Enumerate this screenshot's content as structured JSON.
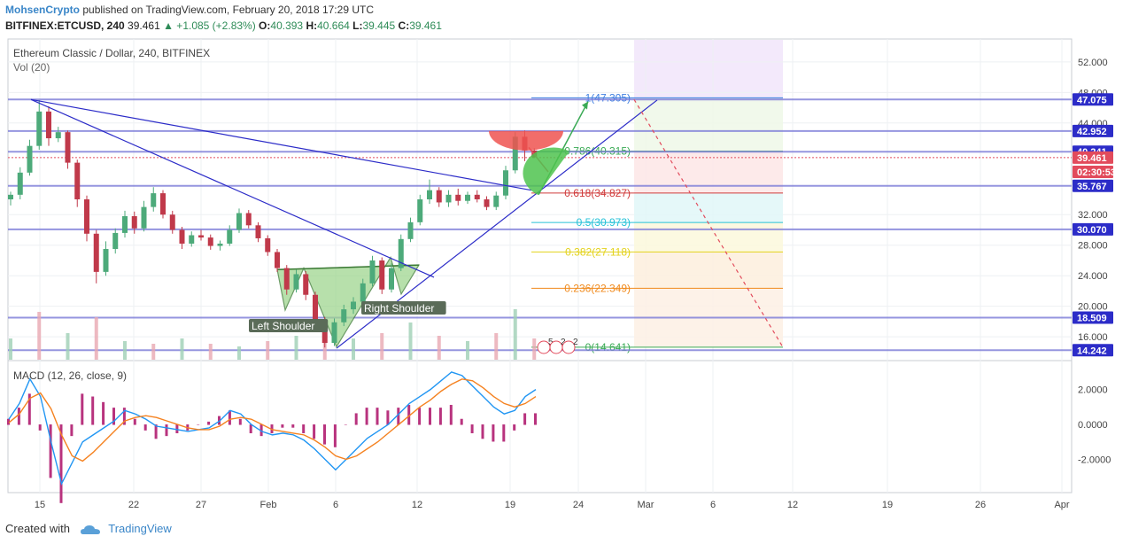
{
  "header": {
    "user": "MohsenCrypto",
    "published": "published on TradingView.com, February 20, 2018 17:29 UTC",
    "symbol": "BITFINEX:ETCUSD, 240",
    "last": "39.461",
    "change": "▲ +1.085 (+2.83%)",
    "ohlc_o_label": "O:",
    "ohlc_o": "40.393",
    "ohlc_h_label": "H:",
    "ohlc_h": "40.664",
    "ohlc_l_label": "L:",
    "ohlc_l": "39.445",
    "ohlc_c_label": "C:",
    "ohlc_c": "39.461"
  },
  "footer": {
    "created_with": "Created with",
    "brand": "TradingView"
  },
  "colors": {
    "up": "#4daa7a",
    "down": "#c0394a",
    "trendline": "#2c2cc8",
    "hline": "#7b7bd8",
    "macd": "#2196f3",
    "signal": "#f58220",
    "hist": "#b8337e"
  },
  "chart_data": [
    {
      "type": "candlestick",
      "title": "Ethereum Classic / Dollar, 240, BITFINEX",
      "indicator_label": "Vol (20)",
      "x_ticks": [
        "15",
        "22",
        "27",
        "Feb",
        "6",
        "12",
        "19",
        "24",
        "Mar",
        "6",
        "12",
        "19",
        "26",
        "Apr"
      ],
      "ylim": [
        13.0,
        55.0
      ],
      "y_ticks": [
        52.0,
        48.0,
        44.0,
        32.0,
        28.0,
        24.0,
        20.0,
        16.0
      ],
      "y_tick_labels": [
        "52.000",
        "48.000",
        "44.000",
        "32.000",
        "28.000",
        "24.000",
        "20.000",
        "16.000"
      ],
      "price_tags": [
        {
          "label": "47.075",
          "value": 47.075,
          "color": "#2c2cc8"
        },
        {
          "label": "42.952",
          "value": 42.952,
          "color": "#2c2cc8"
        },
        {
          "label": "40.241",
          "value": 40.241,
          "color": "#2c2cc8"
        },
        {
          "label": "39.461",
          "value": 39.461,
          "color": "#e24b5c"
        },
        {
          "label": "02:30:53",
          "value": 37.6,
          "color": "#e24b5c"
        },
        {
          "label": "35.767",
          "value": 35.767,
          "color": "#2c2cc8"
        },
        {
          "label": "30.070",
          "value": 30.07,
          "color": "#2c2cc8"
        },
        {
          "label": "18.509",
          "value": 18.509,
          "color": "#2c2cc8"
        },
        {
          "label": "14.242",
          "value": 14.242,
          "color": "#2c2cc8"
        }
      ],
      "horizontal_levels": [
        47.075,
        42.952,
        40.241,
        35.767,
        30.07,
        18.509,
        14.242
      ],
      "fibonacci": [
        {
          "label": "1(47.305)",
          "value": 47.305,
          "color": "#3f7fe0",
          "fill": "#dfe9fb"
        },
        {
          "label": "0.786(40.315)",
          "value": 40.315,
          "color": "#3aaa55",
          "fill": "#eef8e8"
        },
        {
          "label": "0.618(34.827)",
          "value": 34.827,
          "color": "#d03b3b",
          "fill": "#fde6e6"
        },
        {
          "label": "0.5(30.973)",
          "value": 30.973,
          "color": "#27c2d8",
          "fill": "#e0f7f8"
        },
        {
          "label": "0.382(27.118)",
          "value": 27.118,
          "color": "#e3d21b",
          "fill": "#fbf8dc"
        },
        {
          "label": "0.236(22.349)",
          "value": 22.349,
          "color": "#f08a1c",
          "fill": "#fdeedd"
        },
        {
          "label": "0(14.641)",
          "value": 14.641,
          "color": "#3aaa55",
          "fill": "#fdf0e4"
        }
      ],
      "annotations": [
        "Left Shoulder",
        "Right Shoulder"
      ],
      "event_flags": [
        "5",
        "2",
        "2"
      ],
      "candles": [
        {
          "t": 0,
          "o": 34.0,
          "h": 35.0,
          "l": 33.2,
          "c": 34.6
        },
        {
          "t": 1,
          "o": 34.6,
          "h": 38.2,
          "l": 34.0,
          "c": 37.5
        },
        {
          "t": 2,
          "o": 37.5,
          "h": 41.8,
          "l": 37.1,
          "c": 41.0
        },
        {
          "t": 3,
          "o": 41.0,
          "h": 47.0,
          "l": 40.5,
          "c": 45.5
        },
        {
          "t": 4,
          "o": 45.5,
          "h": 46.2,
          "l": 41.0,
          "c": 42.0
        },
        {
          "t": 5,
          "o": 42.0,
          "h": 43.5,
          "l": 41.5,
          "c": 42.8
        },
        {
          "t": 6,
          "o": 42.8,
          "h": 43.0,
          "l": 38.0,
          "c": 38.8
        },
        {
          "t": 7,
          "o": 38.8,
          "h": 39.2,
          "l": 33.0,
          "c": 34.0
        },
        {
          "t": 8,
          "o": 34.0,
          "h": 34.5,
          "l": 28.5,
          "c": 29.5
        },
        {
          "t": 9,
          "o": 29.5,
          "h": 30.0,
          "l": 23.0,
          "c": 24.5
        },
        {
          "t": 10,
          "o": 24.5,
          "h": 28.5,
          "l": 24.0,
          "c": 27.5
        },
        {
          "t": 11,
          "o": 27.5,
          "h": 30.2,
          "l": 26.9,
          "c": 29.6
        },
        {
          "t": 12,
          "o": 29.6,
          "h": 32.5,
          "l": 29.0,
          "c": 31.8
        },
        {
          "t": 13,
          "o": 31.8,
          "h": 32.4,
          "l": 29.5,
          "c": 30.2
        },
        {
          "t": 14,
          "o": 30.2,
          "h": 33.8,
          "l": 29.8,
          "c": 33.0
        },
        {
          "t": 15,
          "o": 33.0,
          "h": 35.6,
          "l": 32.4,
          "c": 34.8
        },
        {
          "t": 16,
          "o": 34.8,
          "h": 35.2,
          "l": 31.5,
          "c": 32.0
        },
        {
          "t": 17,
          "o": 32.0,
          "h": 32.5,
          "l": 29.5,
          "c": 30.0
        },
        {
          "t": 18,
          "o": 30.0,
          "h": 30.4,
          "l": 27.5,
          "c": 28.2
        },
        {
          "t": 19,
          "o": 28.2,
          "h": 29.8,
          "l": 27.8,
          "c": 29.3
        },
        {
          "t": 20,
          "o": 29.3,
          "h": 30.0,
          "l": 28.6,
          "c": 29.0
        },
        {
          "t": 21,
          "o": 29.0,
          "h": 29.4,
          "l": 27.4,
          "c": 27.9
        },
        {
          "t": 22,
          "o": 27.9,
          "h": 28.6,
          "l": 27.3,
          "c": 28.2
        },
        {
          "t": 23,
          "o": 28.2,
          "h": 30.6,
          "l": 27.9,
          "c": 30.0
        },
        {
          "t": 24,
          "o": 30.0,
          "h": 32.8,
          "l": 29.6,
          "c": 32.2
        },
        {
          "t": 25,
          "o": 32.2,
          "h": 32.6,
          "l": 30.2,
          "c": 30.6
        },
        {
          "t": 26,
          "o": 30.6,
          "h": 31.0,
          "l": 28.4,
          "c": 28.9
        },
        {
          "t": 27,
          "o": 28.9,
          "h": 29.3,
          "l": 26.6,
          "c": 27.1
        },
        {
          "t": 28,
          "o": 27.1,
          "h": 27.5,
          "l": 24.5,
          "c": 25.0
        },
        {
          "t": 29,
          "o": 25.0,
          "h": 25.4,
          "l": 21.5,
          "c": 22.2
        },
        {
          "t": 30,
          "o": 22.2,
          "h": 24.8,
          "l": 21.8,
          "c": 24.2
        },
        {
          "t": 31,
          "o": 24.2,
          "h": 24.6,
          "l": 20.8,
          "c": 21.5
        },
        {
          "t": 32,
          "o": 21.5,
          "h": 21.9,
          "l": 17.5,
          "c": 18.2
        },
        {
          "t": 33,
          "o": 18.2,
          "h": 18.6,
          "l": 14.6,
          "c": 15.2
        },
        {
          "t": 34,
          "o": 15.2,
          "h": 18.4,
          "l": 14.8,
          "c": 17.9
        },
        {
          "t": 35,
          "o": 17.9,
          "h": 20.2,
          "l": 17.4,
          "c": 19.6
        },
        {
          "t": 36,
          "o": 19.6,
          "h": 21.2,
          "l": 19.0,
          "c": 20.6
        },
        {
          "t": 37,
          "o": 20.6,
          "h": 23.6,
          "l": 20.2,
          "c": 23.0
        },
        {
          "t": 38,
          "o": 23.0,
          "h": 26.6,
          "l": 22.6,
          "c": 26.0
        },
        {
          "t": 39,
          "o": 26.0,
          "h": 26.4,
          "l": 21.6,
          "c": 22.2
        },
        {
          "t": 40,
          "o": 22.2,
          "h": 25.6,
          "l": 21.8,
          "c": 25.0
        },
        {
          "t": 41,
          "o": 25.0,
          "h": 29.4,
          "l": 24.6,
          "c": 28.8
        },
        {
          "t": 42,
          "o": 28.8,
          "h": 31.6,
          "l": 28.4,
          "c": 31.0
        },
        {
          "t": 43,
          "o": 31.0,
          "h": 34.6,
          "l": 30.6,
          "c": 34.0
        },
        {
          "t": 44,
          "o": 34.0,
          "h": 36.6,
          "l": 33.4,
          "c": 35.2
        },
        {
          "t": 45,
          "o": 35.2,
          "h": 35.6,
          "l": 33.0,
          "c": 33.6
        },
        {
          "t": 46,
          "o": 33.6,
          "h": 35.2,
          "l": 33.0,
          "c": 34.6
        },
        {
          "t": 47,
          "o": 34.6,
          "h": 35.4,
          "l": 33.2,
          "c": 33.8
        },
        {
          "t": 48,
          "o": 33.8,
          "h": 35.0,
          "l": 33.4,
          "c": 34.6
        },
        {
          "t": 49,
          "o": 34.6,
          "h": 35.2,
          "l": 33.6,
          "c": 34.0
        },
        {
          "t": 50,
          "o": 34.0,
          "h": 34.4,
          "l": 32.6,
          "c": 33.0
        },
        {
          "t": 51,
          "o": 33.0,
          "h": 35.0,
          "l": 32.6,
          "c": 34.5
        },
        {
          "t": 52,
          "o": 34.5,
          "h": 38.4,
          "l": 34.0,
          "c": 37.8
        },
        {
          "t": 53,
          "o": 37.8,
          "h": 42.8,
          "l": 37.4,
          "c": 42.2
        },
        {
          "t": 54,
          "o": 42.2,
          "h": 43.0,
          "l": 39.0,
          "c": 40.4
        },
        {
          "t": 55,
          "o": 40.4,
          "h": 40.7,
          "l": 39.4,
          "c": 39.5
        }
      ],
      "volume": [
        {
          "t": 0,
          "v": 0.4
        },
        {
          "t": 3,
          "v": 0.9
        },
        {
          "t": 6,
          "v": 0.5
        },
        {
          "t": 9,
          "v": 0.8
        },
        {
          "t": 12,
          "v": 0.35
        },
        {
          "t": 15,
          "v": 0.3
        },
        {
          "t": 18,
          "v": 0.4
        },
        {
          "t": 21,
          "v": 0.3
        },
        {
          "t": 24,
          "v": 0.25
        },
        {
          "t": 27,
          "v": 0.35
        },
        {
          "t": 30,
          "v": 0.45
        },
        {
          "t": 33,
          "v": 0.55
        },
        {
          "t": 36,
          "v": 0.4
        },
        {
          "t": 39,
          "v": 0.5
        },
        {
          "t": 42,
          "v": 0.7
        },
        {
          "t": 45,
          "v": 0.45
        },
        {
          "t": 48,
          "v": 0.35
        },
        {
          "t": 51,
          "v": 0.5
        },
        {
          "t": 53,
          "v": 0.95
        },
        {
          "t": 55,
          "v": 0.4
        }
      ]
    },
    {
      "type": "line",
      "title": "MACD (12, 26, close, 9)",
      "y_ticks": [
        2.0,
        0.0,
        -2.0
      ],
      "y_tick_labels": [
        "2.0000",
        "0.0000",
        "-2.0000"
      ],
      "ylim": [
        -3.5,
        3.2
      ],
      "series": [
        {
          "name": "",
          "values": [
            0.3,
            1.2,
            2.6,
            1.6,
            -1.0,
            -3.4,
            -2.2,
            -1.0,
            -0.6,
            -0.2,
            0.2,
            0.8,
            0.6,
            0.3,
            -0.1,
            -0.2,
            -0.3,
            -0.4,
            -0.3,
            -0.2,
            0.2,
            0.8,
            0.6,
            0.0,
            -0.4,
            -0.6,
            -0.5,
            -0.6,
            -0.9,
            -1.4,
            -2.0,
            -2.6,
            -2.0,
            -1.4,
            -0.8,
            -0.4,
            0.0,
            0.6,
            1.2,
            1.6,
            2.0,
            2.5,
            3.0,
            2.8,
            2.2,
            1.6,
            1.0,
            0.6,
            0.8,
            1.6,
            2.0
          ]
        },
        {
          "name": "",
          "values": [
            0.1,
            0.6,
            1.5,
            1.8,
            0.9,
            -0.6,
            -1.8,
            -2.1,
            -1.6,
            -1.0,
            -0.4,
            0.2,
            0.4,
            0.5,
            0.4,
            0.2,
            0.0,
            -0.2,
            -0.3,
            -0.3,
            -0.1,
            0.3,
            0.4,
            0.3,
            0.0,
            -0.3,
            -0.4,
            -0.5,
            -0.6,
            -0.9,
            -1.3,
            -1.8,
            -2.0,
            -1.8,
            -1.4,
            -1.0,
            -0.5,
            0.0,
            0.5,
            1.0,
            1.4,
            1.9,
            2.3,
            2.6,
            2.5,
            2.1,
            1.6,
            1.2,
            1.0,
            1.2,
            1.6
          ]
        }
      ]
    }
  ]
}
